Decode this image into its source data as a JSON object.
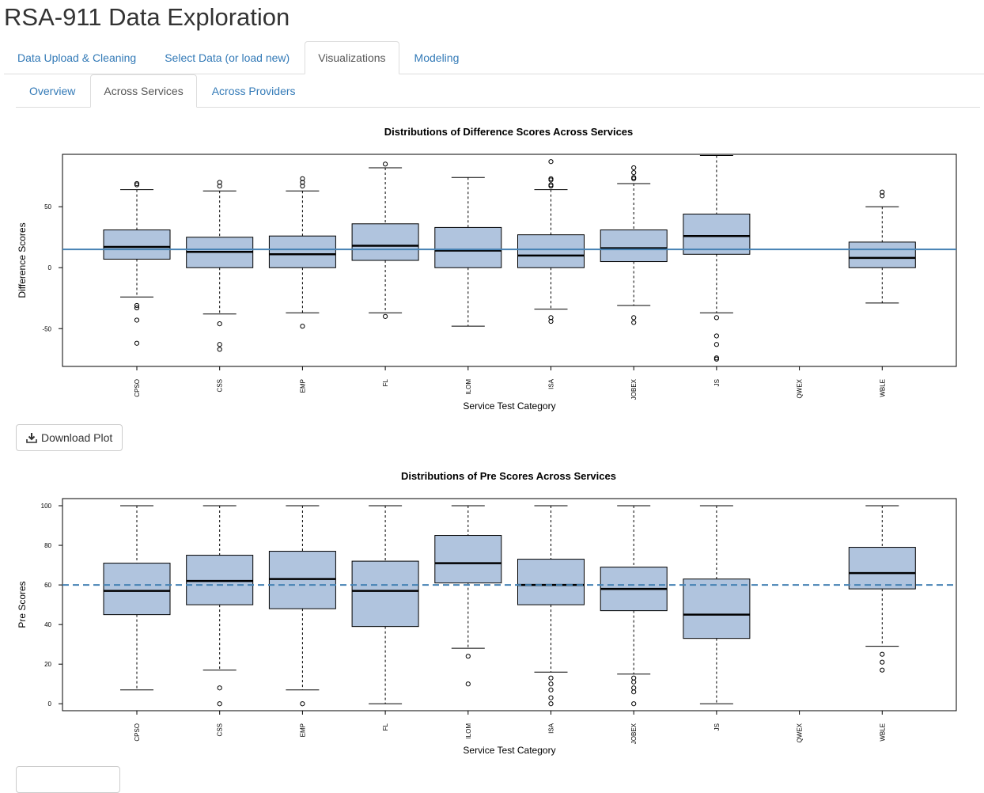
{
  "app": {
    "title": "RSA-911 Data Exploration"
  },
  "tabs": [
    {
      "label": "Data Upload & Cleaning",
      "active": false
    },
    {
      "label": "Select Data (or load new)",
      "active": false
    },
    {
      "label": "Visualizations",
      "active": true
    },
    {
      "label": "Modeling",
      "active": false
    }
  ],
  "subtabs": [
    {
      "label": "Overview",
      "active": false
    },
    {
      "label": "Across Services",
      "active": true
    },
    {
      "label": "Across Providers",
      "active": false
    }
  ],
  "download_label": "Download Plot",
  "colors": {
    "box_fill": "#b0c4de",
    "ref_line": "#4682b4",
    "link": "#337ab7"
  },
  "icons": {
    "download": "download-icon"
  },
  "chart_data": [
    {
      "type": "boxplot",
      "title": "Distributions of Difference Scores Across Services",
      "xlabel": "Service Test Category",
      "ylabel": "Difference Scores",
      "ylim": [
        -81,
        93
      ],
      "yticks": [
        -50,
        0,
        50
      ],
      "reference_line": {
        "value": 15,
        "style": "solid"
      },
      "categories": [
        "CPSO",
        "CSS",
        "EMP",
        "FL",
        "ILOM",
        "ISA",
        "JOBEX",
        "JS",
        "QWEX",
        "WBLE"
      ],
      "boxes": [
        {
          "category": "CPSO",
          "whisker_low": -24,
          "q1": 7,
          "median": 17,
          "q3": 31,
          "whisker_high": 64,
          "outliers": [
            68,
            69,
            -31,
            -33,
            -43,
            -62
          ]
        },
        {
          "category": "CSS",
          "whisker_low": -38,
          "q1": 0,
          "median": 13,
          "q3": 25,
          "whisker_high": 63,
          "outliers": [
            67,
            70,
            -46,
            -63,
            -67
          ]
        },
        {
          "category": "EMP",
          "whisker_low": -37,
          "q1": 0,
          "median": 11,
          "q3": 26,
          "whisker_high": 63,
          "outliers": [
            67,
            70,
            73,
            -48
          ]
        },
        {
          "category": "FL",
          "whisker_low": -37,
          "q1": 6,
          "median": 18,
          "q3": 36,
          "whisker_high": 82,
          "outliers": [
            85,
            -40
          ]
        },
        {
          "category": "ILOM",
          "whisker_low": -48,
          "q1": 0,
          "median": 14,
          "q3": 33,
          "whisker_high": 74,
          "outliers": []
        },
        {
          "category": "ISA",
          "whisker_low": -34,
          "q1": 0,
          "median": 10,
          "q3": 27,
          "whisker_high": 64,
          "outliers": [
            67,
            68,
            72,
            73,
            87,
            -41,
            -44
          ]
        },
        {
          "category": "JOBEX",
          "whisker_low": -31,
          "q1": 5,
          "median": 16,
          "q3": 31,
          "whisker_high": 69,
          "outliers": [
            73,
            74,
            78,
            82,
            -41,
            -45
          ]
        },
        {
          "category": "JS",
          "whisker_low": -37,
          "q1": 11,
          "median": 26,
          "q3": 44,
          "whisker_high": 92,
          "outliers": [
            -41,
            -56,
            -63,
            -74,
            -75
          ]
        },
        {
          "category": "QWEX",
          "empty": true
        },
        {
          "category": "WBLE",
          "whisker_low": -29,
          "q1": 0,
          "median": 8,
          "q3": 21,
          "whisker_high": 50,
          "outliers": [
            59,
            62
          ]
        }
      ]
    },
    {
      "type": "boxplot",
      "title": "Distributions of Pre Scores Across Services",
      "xlabel": "Service Test Category",
      "ylabel": "Pre Scores",
      "ylim": [
        -3.5,
        103.6
      ],
      "yticks": [
        0,
        20,
        40,
        60,
        80,
        100
      ],
      "reference_line": {
        "value": 60,
        "style": "dashed"
      },
      "categories": [
        "CPSO",
        "CSS",
        "EMP",
        "FL",
        "ILOM",
        "ISA",
        "JOBEX",
        "JS",
        "QWEX",
        "WBLE"
      ],
      "boxes": [
        {
          "category": "CPSO",
          "whisker_low": 7,
          "q1": 45,
          "median": 57,
          "q3": 71,
          "whisker_high": 100,
          "outliers": []
        },
        {
          "category": "CSS",
          "whisker_low": 17,
          "q1": 50,
          "median": 62,
          "q3": 75,
          "whisker_high": 100,
          "outliers": [
            8,
            0
          ]
        },
        {
          "category": "EMP",
          "whisker_low": 7,
          "q1": 48,
          "median": 63,
          "q3": 77,
          "whisker_high": 100,
          "outliers": [
            0
          ]
        },
        {
          "category": "FL",
          "whisker_low": 0,
          "q1": 39,
          "median": 57,
          "q3": 72,
          "whisker_high": 100,
          "outliers": []
        },
        {
          "category": "ILOM",
          "whisker_low": 28,
          "q1": 61,
          "median": 71,
          "q3": 85,
          "whisker_high": 100,
          "outliers": [
            24,
            10
          ]
        },
        {
          "category": "ISA",
          "whisker_low": 16,
          "q1": 50,
          "median": 60,
          "q3": 73,
          "whisker_high": 100,
          "outliers": [
            13,
            10,
            7,
            3,
            0
          ]
        },
        {
          "category": "JOBEX",
          "whisker_low": 15,
          "q1": 47,
          "median": 58,
          "q3": 69,
          "whisker_high": 100,
          "outliers": [
            13,
            11,
            8,
            6,
            0
          ]
        },
        {
          "category": "JS",
          "whisker_low": 0,
          "q1": 33,
          "median": 45,
          "q3": 63,
          "whisker_high": 100,
          "outliers": []
        },
        {
          "category": "QWEX",
          "empty": true
        },
        {
          "category": "WBLE",
          "whisker_low": 29,
          "q1": 58,
          "median": 66,
          "q3": 79,
          "whisker_high": 100,
          "outliers": [
            25,
            21,
            17
          ]
        }
      ]
    }
  ]
}
